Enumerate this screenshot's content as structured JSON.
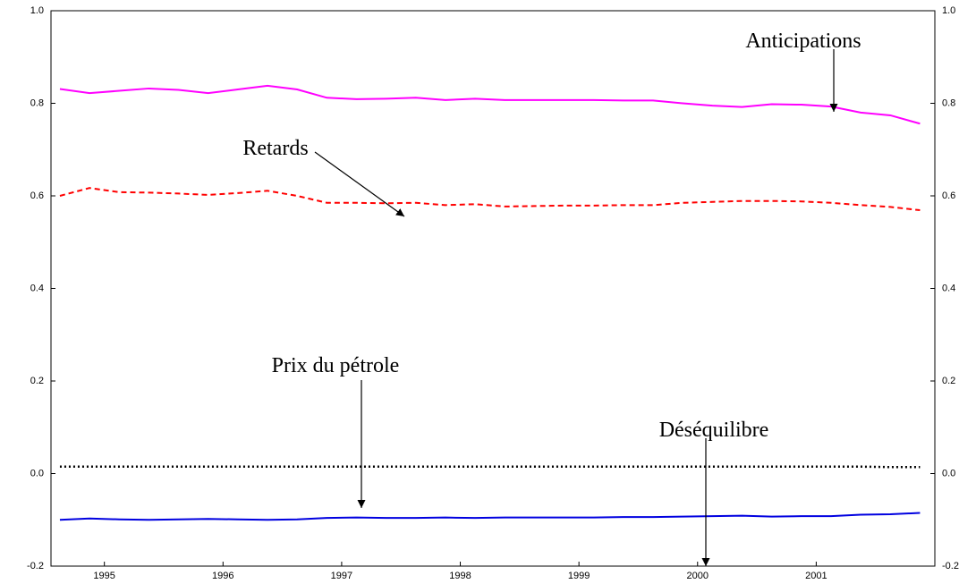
{
  "chart_data": {
    "type": "line",
    "x": [
      1994.625,
      1994.875,
      1995.125,
      1995.375,
      1995.625,
      1995.875,
      1996.125,
      1996.375,
      1996.625,
      1996.875,
      1997.125,
      1997.375,
      1997.625,
      1997.875,
      1998.125,
      1998.375,
      1998.625,
      1998.875,
      1999.125,
      1999.375,
      1999.625,
      1999.875,
      2000.125,
      2000.375,
      2000.625,
      2000.875,
      2001.125,
      2001.375,
      2001.625,
      2001.875
    ],
    "xlim": [
      1994.55,
      2002.0
    ],
    "xticks": [
      1995,
      1996,
      1997,
      1998,
      1999,
      2000,
      2001
    ],
    "ylim": [
      -0.2,
      1.0
    ],
    "yticks": [
      {
        "value": 1.0,
        "label": "1.0"
      },
      0.8,
      0.6,
      0.4,
      0.2,
      {
        "value": 0,
        "label": "0.0"
      },
      -0.2
    ],
    "grid": false,
    "series": [
      {
        "name": "Anticipations",
        "color": "#ff00ff",
        "style": "solid",
        "values": [
          0.831,
          0.822,
          0.827,
          0.832,
          0.829,
          0.822,
          0.83,
          0.838,
          0.83,
          0.812,
          0.809,
          0.81,
          0.812,
          0.807,
          0.81,
          0.807,
          0.807,
          0.807,
          0.807,
          0.806,
          0.806,
          0.8,
          0.795,
          0.792,
          0.798,
          0.797,
          0.793,
          0.78,
          0.774,
          0.756
        ]
      },
      {
        "name": "Retards",
        "color": "#ff0000",
        "style": "dashed",
        "values": [
          0.6,
          0.617,
          0.608,
          0.607,
          0.605,
          0.602,
          0.606,
          0.611,
          0.6,
          0.585,
          0.585,
          0.584,
          0.585,
          0.58,
          0.582,
          0.577,
          0.578,
          0.579,
          0.579,
          0.58,
          0.58,
          0.585,
          0.587,
          0.589,
          0.589,
          0.588,
          0.585,
          0.58,
          0.576,
          0.569
        ]
      },
      {
        "name": "Déséquilibre",
        "color": "#000000",
        "style": "dotted",
        "values": [
          0.015,
          0.015,
          0.015,
          0.015,
          0.015,
          0.015,
          0.015,
          0.015,
          0.015,
          0.015,
          0.015,
          0.015,
          0.015,
          0.015,
          0.015,
          0.015,
          0.015,
          0.015,
          0.015,
          0.015,
          0.015,
          0.015,
          0.015,
          0.015,
          0.015,
          0.015,
          0.015,
          0.015,
          0.014,
          0.014
        ]
      },
      {
        "name": "Prix du pétrole",
        "color": "#0000e0",
        "style": "solid",
        "values": [
          -0.1,
          -0.097,
          -0.099,
          -0.1,
          -0.099,
          -0.098,
          -0.099,
          -0.1,
          -0.099,
          -0.096,
          -0.095,
          -0.096,
          -0.096,
          -0.095,
          -0.096,
          -0.095,
          -0.095,
          -0.095,
          -0.095,
          -0.094,
          -0.094,
          -0.093,
          -0.092,
          -0.091,
          -0.093,
          -0.092,
          -0.092,
          -0.089,
          -0.088,
          -0.085
        ]
      }
    ]
  }
}
